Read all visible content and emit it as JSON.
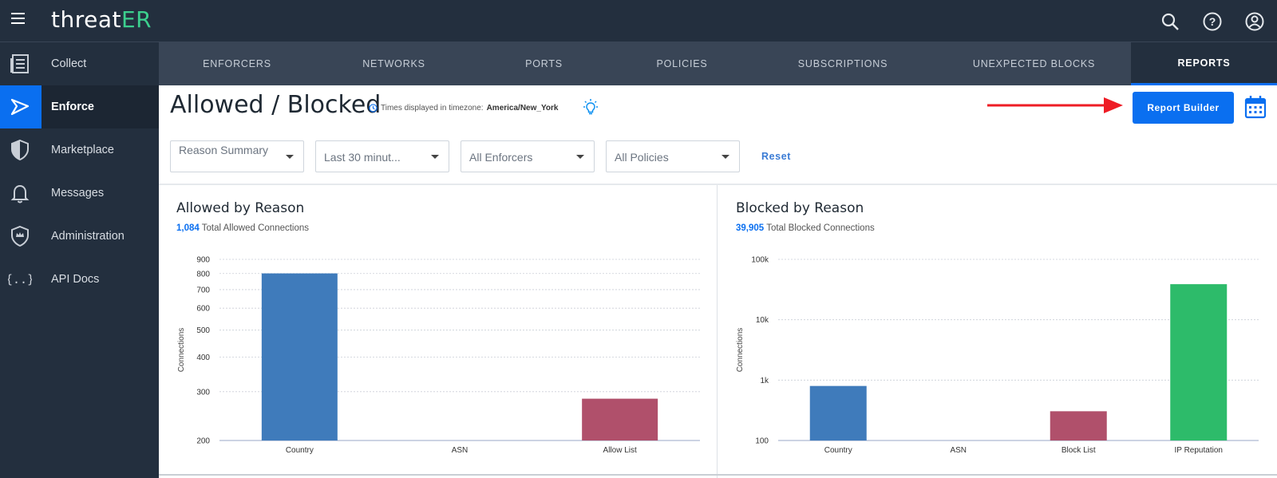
{
  "app": {
    "logo_main": "threat",
    "logo_accent": "ER"
  },
  "topbar_icons": [
    "search-icon",
    "help-icon",
    "account-icon"
  ],
  "sidebar": {
    "items": [
      {
        "label": "Collect",
        "icon": "collect-icon"
      },
      {
        "label": "Enforce",
        "icon": "enforce-icon",
        "active": true
      },
      {
        "label": "Marketplace",
        "icon": "shield-icon"
      },
      {
        "label": "Messages",
        "icon": "bell-icon"
      },
      {
        "label": "Administration",
        "icon": "admin-shield-icon"
      },
      {
        "label": "API Docs",
        "icon": "braces-icon"
      }
    ]
  },
  "tabs": [
    {
      "label": "ENFORCERS"
    },
    {
      "label": "NETWORKS"
    },
    {
      "label": "PORTS"
    },
    {
      "label": "POLICIES"
    },
    {
      "label": "SUBSCRIPTIONS"
    },
    {
      "label": "UNEXPECTED BLOCKS"
    },
    {
      "label": "REPORTS",
      "active": true
    }
  ],
  "page": {
    "title": "Allowed / Blocked",
    "tz_label": "Times displayed in timezone:",
    "tz_value": "America/New_York",
    "report_builder": "Report Builder"
  },
  "filters": {
    "report_type": "Reason Summary",
    "time_range": "Last 30 minut...",
    "enforcers": "All Enforcers",
    "policies": "All Policies",
    "reset": "Reset"
  },
  "allowed_panel": {
    "title": "Allowed by Reason",
    "total": "1,084",
    "total_label": "Total Allowed Connections"
  },
  "blocked_panel": {
    "title": "Blocked by Reason",
    "total": "39,905",
    "total_label": "Total Blocked Connections"
  },
  "colors": {
    "accent": "#0a6ff0",
    "blue_bar": "#3f7bbb",
    "red_bar": "#b0506b",
    "green_bar": "#2dbb6a",
    "sidebar": "#232f3e"
  },
  "chart_data": [
    {
      "type": "bar",
      "title": "Allowed by Reason",
      "ylabel": "Connections",
      "scale": "log",
      "ylim": [
        200,
        900
      ],
      "yticks": [
        200,
        300,
        400,
        500,
        600,
        700,
        800,
        900
      ],
      "ytick_labels": [
        "200",
        "300",
        "400",
        "500",
        "600",
        "700",
        "800",
        "900"
      ],
      "categories": [
        "Country",
        "ASN",
        "Allow List"
      ],
      "values": [
        801,
        0,
        283
      ],
      "colors": [
        "#3f7bbb",
        "#3f7bbb",
        "#b0506b"
      ],
      "grid": true
    },
    {
      "type": "bar",
      "title": "Blocked by Reason",
      "ylabel": "Connections",
      "scale": "log",
      "ylim": [
        100,
        100000
      ],
      "yticks": [
        100,
        1000,
        10000,
        100000
      ],
      "ytick_labels": [
        "100",
        "1k",
        "10k",
        "100k"
      ],
      "categories": [
        "Country",
        "ASN",
        "Block List",
        "IP Reputation"
      ],
      "values": [
        800,
        0,
        305,
        38800
      ],
      "colors": [
        "#3f7bbb",
        "#3f7bbb",
        "#b0506b",
        "#2dbb6a"
      ],
      "grid": true
    }
  ]
}
